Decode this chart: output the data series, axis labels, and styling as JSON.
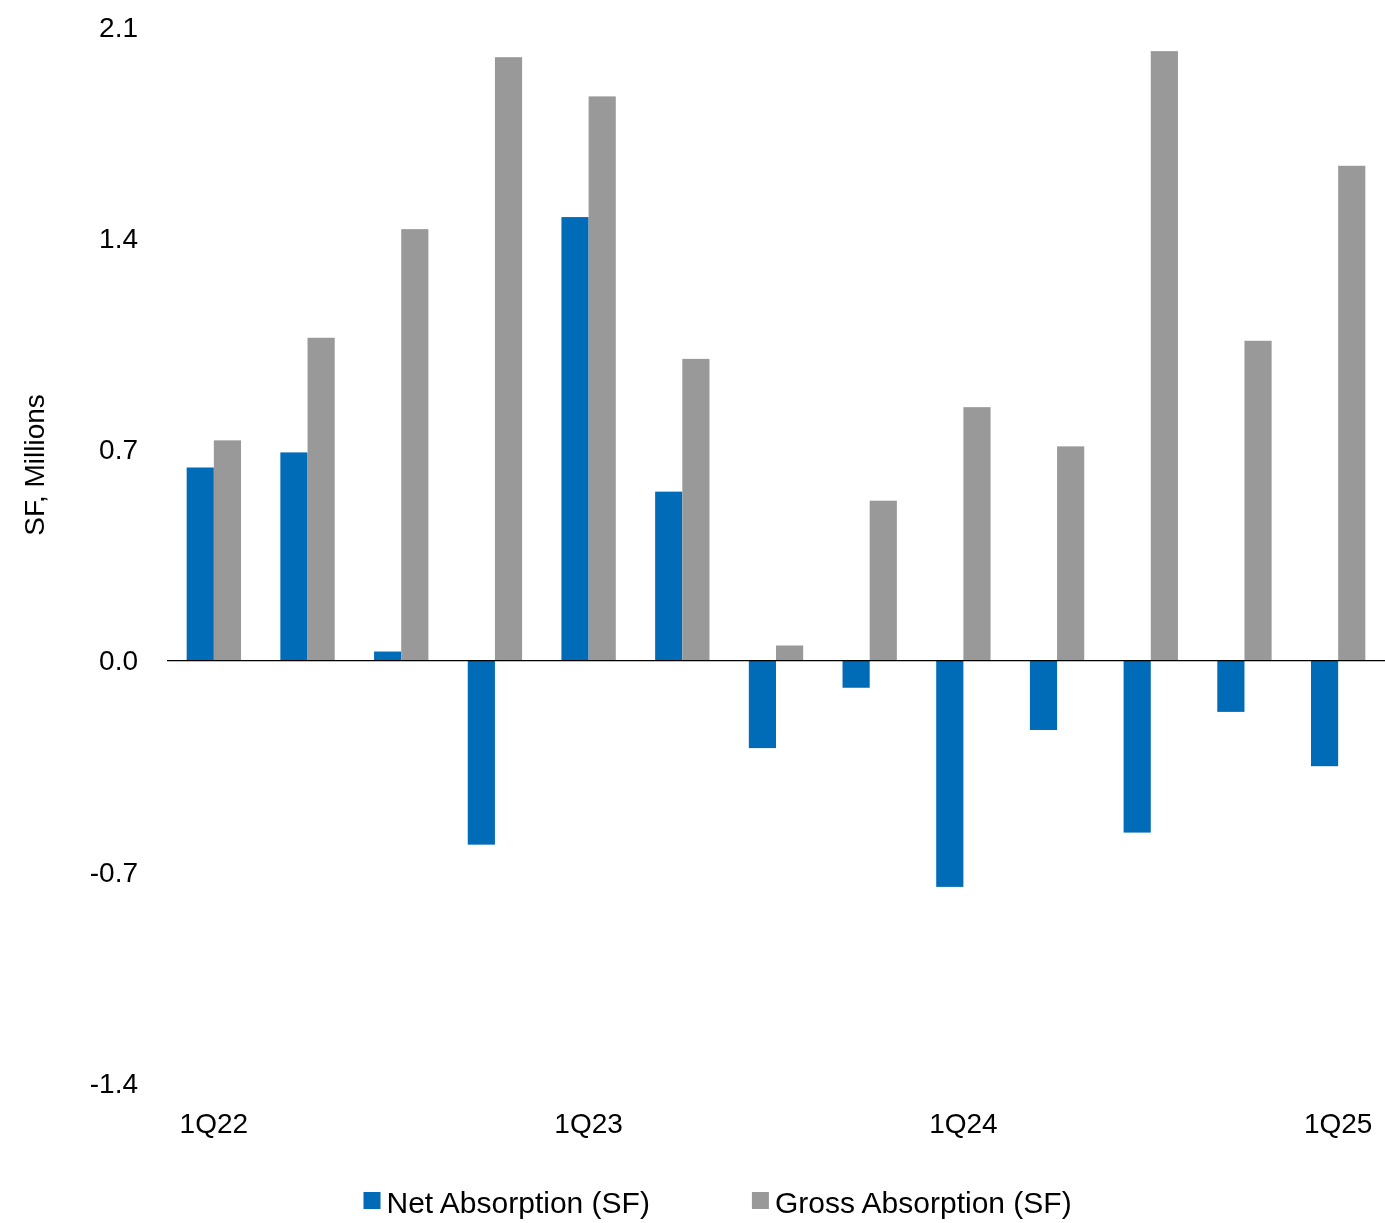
{
  "chart_data": {
    "type": "bar",
    "ylabel": "SF, Millions",
    "categories": [
      "1Q22",
      null,
      null,
      null,
      "1Q23",
      null,
      null,
      null,
      "1Q24",
      null,
      null,
      null,
      "1Q25"
    ],
    "series": [
      {
        "name": "Net Absorption (SF)",
        "color": "#006bb6",
        "values": [
          0.64,
          0.69,
          0.03,
          -0.61,
          1.47,
          0.56,
          -0.29,
          -0.09,
          -0.75,
          -0.23,
          -0.57,
          -0.17,
          -0.35
        ]
      },
      {
        "name": "Gross Absorption (SF)",
        "color": "#999999",
        "values": [
          0.73,
          1.07,
          1.43,
          2.0,
          1.87,
          1.0,
          0.05,
          0.53,
          0.84,
          0.71,
          2.02,
          1.06,
          1.64
        ]
      }
    ],
    "ylim": [
      -1.4,
      2.1
    ],
    "yticks": [
      {
        "value": -1.4,
        "label": "-1.4"
      },
      {
        "value": -0.7,
        "label": "-0.7"
      },
      {
        "value": 0,
        "label": "0.0"
      },
      {
        "value": 0.7,
        "label": "0.7"
      },
      {
        "value": 1.4,
        "label": "1.4"
      },
      {
        "value": 2.1,
        "label": "2.1"
      }
    ],
    "legend": "bottom"
  }
}
